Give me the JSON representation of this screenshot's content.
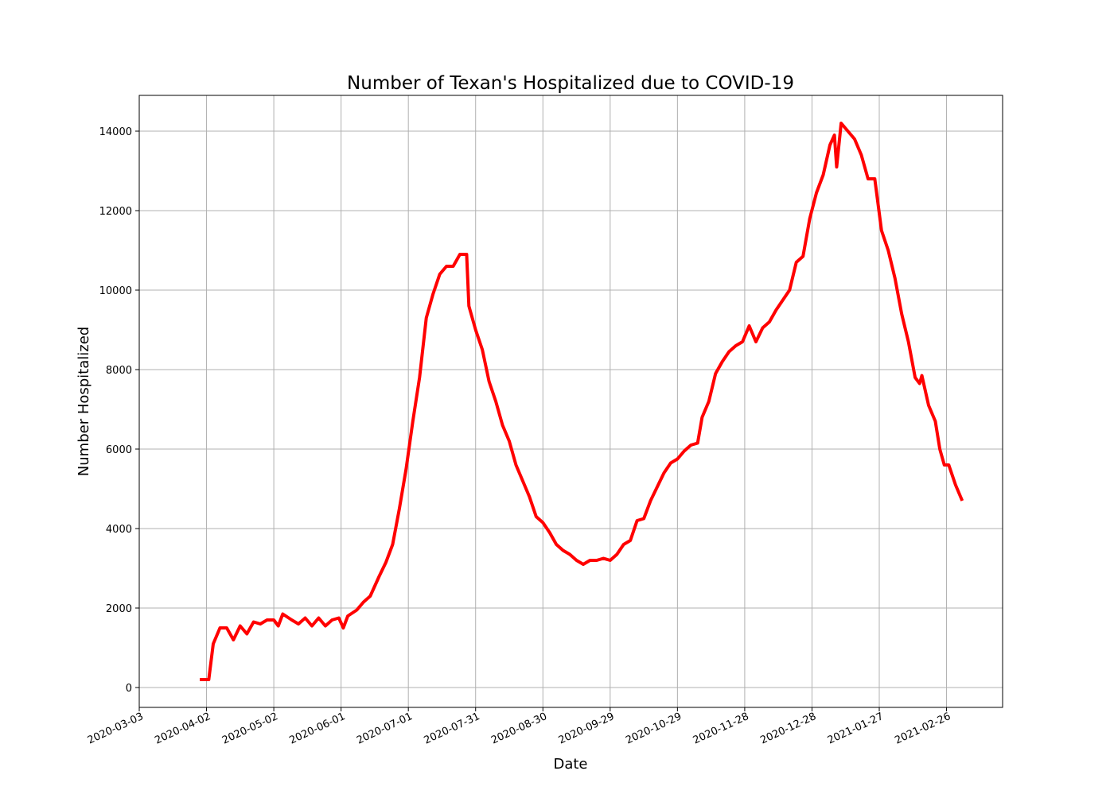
{
  "chart_data": {
    "type": "line",
    "title": "Number of Texan's Hospitalized due to COVID-19",
    "xlabel": "Date",
    "ylabel": "Number Hospitalized",
    "x": [
      "2020-03-30",
      "2020-04-03",
      "2020-04-05",
      "2020-04-08",
      "2020-04-11",
      "2020-04-14",
      "2020-04-17",
      "2020-04-20",
      "2020-04-23",
      "2020-04-26",
      "2020-04-29",
      "2020-05-02",
      "2020-05-04",
      "2020-05-06",
      "2020-05-10",
      "2020-05-13",
      "2020-05-16",
      "2020-05-19",
      "2020-05-22",
      "2020-05-25",
      "2020-05-28",
      "2020-05-31",
      "2020-06-02",
      "2020-06-04",
      "2020-06-08",
      "2020-06-11",
      "2020-06-14",
      "2020-06-18",
      "2020-06-21",
      "2020-06-24",
      "2020-06-27",
      "2020-06-30",
      "2020-07-03",
      "2020-07-06",
      "2020-07-09",
      "2020-07-12",
      "2020-07-15",
      "2020-07-18",
      "2020-07-21",
      "2020-07-24",
      "2020-07-27",
      "2020-07-28",
      "2020-07-29",
      "2020-07-31",
      "2020-08-03",
      "2020-08-06",
      "2020-08-09",
      "2020-08-12",
      "2020-08-15",
      "2020-08-18",
      "2020-08-21",
      "2020-08-24",
      "2020-08-27",
      "2020-08-30",
      "2020-09-02",
      "2020-09-05",
      "2020-09-08",
      "2020-09-11",
      "2020-09-14",
      "2020-09-17",
      "2020-09-20",
      "2020-09-23",
      "2020-09-26",
      "2020-09-29",
      "2020-10-02",
      "2020-10-05",
      "2020-10-08",
      "2020-10-11",
      "2020-10-14",
      "2020-10-17",
      "2020-10-20",
      "2020-10-23",
      "2020-10-26",
      "2020-10-29",
      "2020-11-01",
      "2020-11-04",
      "2020-11-07",
      "2020-11-09",
      "2020-11-12",
      "2020-11-15",
      "2020-11-18",
      "2020-11-21",
      "2020-11-24",
      "2020-11-27",
      "2020-11-30",
      "2020-12-03",
      "2020-12-06",
      "2020-12-09",
      "2020-12-12",
      "2020-12-15",
      "2020-12-18",
      "2020-12-21",
      "2020-12-24",
      "2020-12-27",
      "2020-12-30",
      "2021-01-02",
      "2021-01-05",
      "2021-01-07",
      "2021-01-08",
      "2021-01-10",
      "2021-01-13",
      "2021-01-16",
      "2021-01-19",
      "2021-01-22",
      "2021-01-25",
      "2021-01-28",
      "2021-01-31",
      "2021-02-03",
      "2021-02-06",
      "2021-02-09",
      "2021-02-12",
      "2021-02-14",
      "2021-02-15",
      "2021-02-18",
      "2021-02-21",
      "2021-02-23",
      "2021-02-25",
      "2021-02-27",
      "2021-03-02",
      "2021-03-05"
    ],
    "series": [
      {
        "color": "#ff0000",
        "values": [
          200,
          200,
          1100,
          1500,
          1500,
          1200,
          1550,
          1350,
          1650,
          1600,
          1700,
          1700,
          1550,
          1850,
          1700,
          1600,
          1750,
          1550,
          1750,
          1550,
          1700,
          1750,
          1500,
          1800,
          1950,
          2150,
          2300,
          2800,
          3150,
          3600,
          4500,
          5500,
          6700,
          7800,
          9300,
          9900,
          10400,
          10600,
          10600,
          10900,
          10900,
          9600,
          9400,
          9000,
          8500,
          7700,
          7200,
          6600,
          6200,
          5600,
          5200,
          4800,
          4300,
          4150,
          3900,
          3600,
          3450,
          3350,
          3200,
          3100,
          3200,
          3200,
          3250,
          3200,
          3350,
          3600,
          3700,
          4200,
          4250,
          4700,
          5050,
          5400,
          5650,
          5750,
          5950,
          6100,
          6150,
          6800,
          7200,
          7900,
          8200,
          8450,
          8600,
          8700,
          9100,
          8700,
          9050,
          9200,
          9500,
          9750,
          10000,
          10700,
          10850,
          11800,
          12450,
          12900,
          13650,
          13900,
          13100,
          14200,
          14000,
          13800,
          13400,
          12800,
          12800,
          11500,
          11000,
          10300,
          9400,
          8700,
          7800,
          7650,
          7850,
          7100,
          6700,
          6000,
          5600,
          5600,
          5100,
          4700
        ]
      }
    ],
    "xlim": [
      "2020-03-03",
      "2021-03-23"
    ],
    "xticks": [
      "2020-03-03",
      "2020-04-02",
      "2020-05-02",
      "2020-06-01",
      "2020-07-01",
      "2020-07-31",
      "2020-08-30",
      "2020-09-29",
      "2020-10-29",
      "2020-11-28",
      "2020-12-28",
      "2021-01-27",
      "2021-02-26"
    ],
    "ylim": [
      -500,
      14900
    ],
    "yticks": [
      0,
      2000,
      4000,
      6000,
      8000,
      10000,
      12000,
      14000
    ],
    "grid": true
  }
}
